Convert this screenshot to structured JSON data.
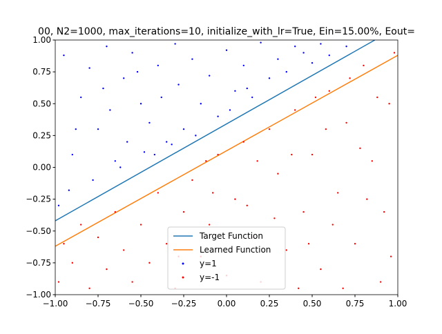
{
  "chart_data": {
    "type": "scatter",
    "title": "00, N2=1000, max_iterations=10, initialize_with_lr=True, Ein=15.00%, Eout=",
    "xlim": [
      -1,
      1
    ],
    "ylim": [
      -1,
      1
    ],
    "xticks": [
      {
        "value": -1,
        "label": "−1.00"
      },
      {
        "value": -0.75,
        "label": "−0.75"
      },
      {
        "value": -0.5,
        "label": "−0.50"
      },
      {
        "value": -0.25,
        "label": "−0.25"
      },
      {
        "value": 0,
        "label": "0.00"
      },
      {
        "value": 0.25,
        "label": "0.25"
      },
      {
        "value": 0.5,
        "label": "0.50"
      },
      {
        "value": 0.75,
        "label": "0.75"
      },
      {
        "value": 1,
        "label": "1.00"
      }
    ],
    "yticks": [
      {
        "value": -1,
        "label": "−1.00"
      },
      {
        "value": -0.75,
        "label": "−0.75"
      },
      {
        "value": -0.5,
        "label": "−0.50"
      },
      {
        "value": -0.25,
        "label": "−0.25"
      },
      {
        "value": 0,
        "label": "0.00"
      },
      {
        "value": 0.25,
        "label": "0.25"
      },
      {
        "value": 0.5,
        "label": "0.50"
      },
      {
        "value": 0.75,
        "label": "0.75"
      },
      {
        "value": 1,
        "label": "1.00"
      }
    ],
    "legend": "lower center",
    "series": [
      {
        "name": "Target Function",
        "kind": "line",
        "color": "#1f77b4",
        "x": [
          -1,
          0.866
        ],
        "values": [
          -0.42,
          1.0
        ]
      },
      {
        "name": "Learned Function",
        "kind": "line",
        "color": "#ff7f0e",
        "x": [
          -1,
          1
        ],
        "values": [
          -0.62,
          0.88
        ]
      },
      {
        "name": "y=1",
        "kind": "scatter",
        "color": "#0000ff",
        "x": [
          -0.95,
          -0.9,
          -0.85,
          -0.8,
          -0.78,
          -0.75,
          -0.7,
          -0.68,
          -0.65,
          -0.6,
          -0.58,
          -0.55,
          -0.5,
          -0.48,
          -0.45,
          -0.4,
          -0.38,
          -0.35,
          -0.3,
          -0.28,
          -0.25,
          -0.2,
          -0.15,
          -0.1,
          -0.05,
          0,
          0.05,
          0.1,
          0.15,
          0.2,
          0.25,
          0.3,
          0.35,
          0.4,
          0.45,
          0.5,
          0.55,
          0.6,
          0.7,
          -0.98,
          -0.92,
          -0.88,
          -0.62,
          -0.42,
          -0.32,
          -0.18,
          0.02,
          0.12,
          -0.72,
          -0.52
        ],
        "values": [
          0.88,
          0.1,
          0.55,
          0.78,
          -0.1,
          0.3,
          0.95,
          0.45,
          0.05,
          0.7,
          0.2,
          0.9,
          0.5,
          0.12,
          0.35,
          0.8,
          0.55,
          0.2,
          0.97,
          0.65,
          0.3,
          0.85,
          0.5,
          0.72,
          0.4,
          0.92,
          0.6,
          0.8,
          0.55,
          0.98,
          0.7,
          0.85,
          0.75,
          0.95,
          0.9,
          0.82,
          0.97,
          0.88,
          0.95,
          -0.3,
          -0.18,
          0.3,
          0.0,
          0.1,
          0.18,
          0.25,
          0.45,
          0.62,
          0.62,
          0.75
        ]
      },
      {
        "name": "y=-1",
        "kind": "scatter",
        "color": "#ff0000",
        "x": [
          -0.98,
          -0.95,
          -0.9,
          -0.85,
          -0.8,
          -0.75,
          -0.7,
          -0.65,
          -0.6,
          -0.55,
          -0.5,
          -0.45,
          -0.4,
          -0.35,
          -0.3,
          -0.25,
          -0.2,
          -0.15,
          -0.1,
          -0.05,
          0,
          0.05,
          0.1,
          0.15,
          0.2,
          0.25,
          0.3,
          0.35,
          0.4,
          0.45,
          0.5,
          0.55,
          0.6,
          0.65,
          0.7,
          0.75,
          0.8,
          0.85,
          0.9,
          0.95,
          0.98,
          0.92,
          0.88,
          0.78,
          0.68,
          0.58,
          0.48,
          0.38,
          0.28,
          0.18,
          -0.08,
          -0.28,
          0.62,
          0.82,
          0.72,
          0.96,
          0.42,
          0.12,
          -0.12,
          0.52
        ],
        "values": [
          -0.9,
          -0.6,
          -0.75,
          -0.45,
          -0.95,
          -0.55,
          -0.8,
          -0.35,
          -0.65,
          -0.9,
          -0.45,
          -0.75,
          -0.2,
          -0.6,
          -0.95,
          -0.35,
          -0.1,
          -0.7,
          -0.45,
          0.1,
          -0.85,
          -0.25,
          0.2,
          -0.55,
          -0.9,
          0.3,
          -0.05,
          -0.65,
          0.45,
          -0.35,
          0.1,
          -0.8,
          0.6,
          -0.2,
          0.35,
          -0.6,
          0.8,
          0.05,
          -0.9,
          0.5,
          0.9,
          -0.35,
          0.55,
          0.15,
          -0.95,
          0.3,
          -0.6,
          0.1,
          -0.4,
          0.05,
          -0.2,
          -0.7,
          -0.45,
          -0.25,
          0.7,
          -0.7,
          -0.95,
          -0.3,
          0.05,
          0.55
        ]
      }
    ]
  }
}
